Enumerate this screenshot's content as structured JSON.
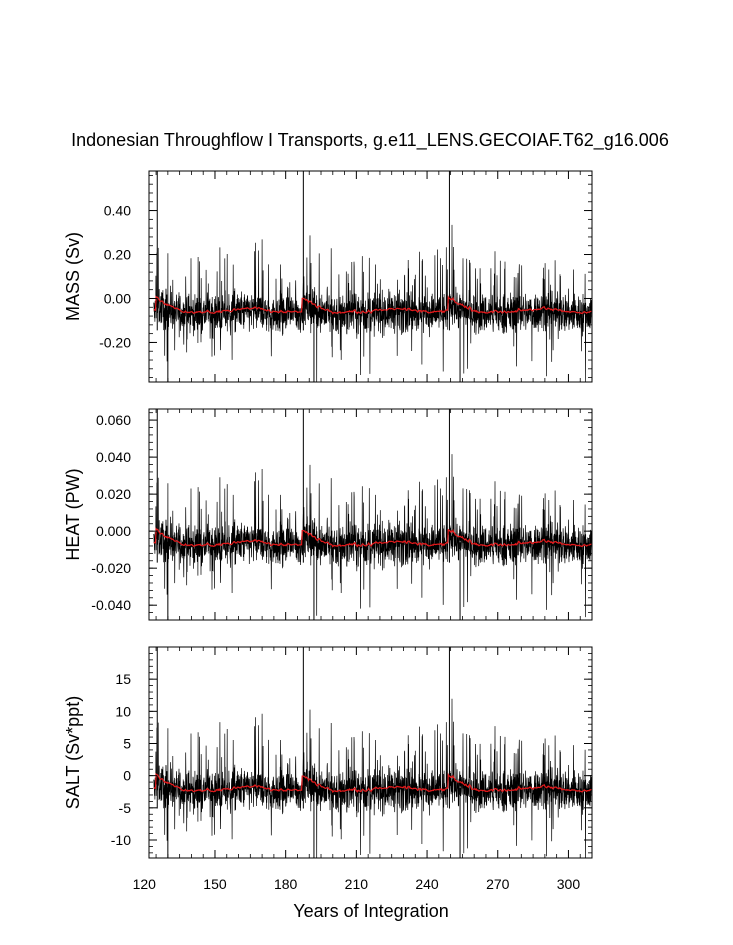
{
  "chart_data": {
    "type": "line",
    "title": "Indonesian Throughflow I Transports, g.e11_LENS.GECOIAF.T62_g16.006",
    "xlabel": "Years of Integration",
    "xlim": [
      122,
      310
    ],
    "xticks": [
      120,
      150,
      180,
      210,
      240,
      270,
      300
    ],
    "cycle_starts": [
      125.5,
      187.5,
      249.5
    ],
    "series_colors": {
      "monthly": "#000000",
      "running_mean": "#e41a1c"
    },
    "panels": [
      {
        "name": "mass",
        "ylabel": "MASS (Sv)",
        "ylim": [
          -0.38,
          0.58
        ],
        "yticks": [
          0.4,
          0.2,
          0.0,
          -0.2
        ],
        "ytick_labels": [
          "0.40",
          "0.20",
          "0.00",
          "-0.20"
        ],
        "series": [
          {
            "name": "monthly",
            "mean": -0.055,
            "amplitude": 0.09,
            "spike_max": 0.58,
            "spike_min": -0.38
          },
          {
            "name": "running_mean",
            "values_range": [
              -0.09,
              0.03
            ]
          }
        ]
      },
      {
        "name": "heat",
        "ylabel": "HEAT (PW)",
        "ylim": [
          -0.048,
          0.066
        ],
        "yticks": [
          0.06,
          0.04,
          0.02,
          0.0,
          -0.02,
          -0.04
        ],
        "ytick_labels": [
          "0.060",
          "0.040",
          "0.020",
          "0.000",
          "-0.020",
          "-0.040"
        ],
        "series": [
          {
            "name": "monthly",
            "mean": -0.006,
            "amplitude": 0.011,
            "spike_max": 0.066,
            "spike_min": -0.048
          },
          {
            "name": "running_mean",
            "values_range": [
              -0.011,
              0.004
            ]
          }
        ]
      },
      {
        "name": "salt",
        "ylabel": "SALT (Sv*ppt)",
        "ylim": [
          -12.8,
          20
        ],
        "yticks": [
          15,
          10,
          5,
          0,
          -5,
          -10
        ],
        "ytick_labels": [
          "15",
          "10",
          "5",
          "0",
          "-5",
          "-10"
        ],
        "series": [
          {
            "name": "monthly",
            "mean": -1.9,
            "amplitude": 3.2,
            "spike_max": 20,
            "spike_min": -12.8
          },
          {
            "name": "running_mean",
            "values_range": [
              -3.3,
              1.0
            ]
          }
        ]
      }
    ]
  }
}
